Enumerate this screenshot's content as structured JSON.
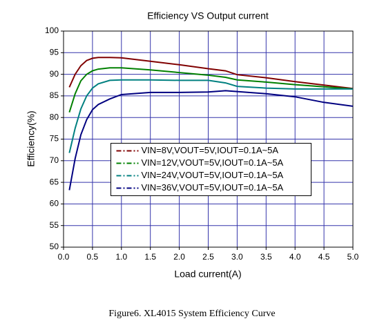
{
  "chart_data": {
    "type": "line",
    "title": "Efficiency VS Output current",
    "xlabel": "Load current(A)",
    "ylabel": "Efficiency(%)",
    "x": [
      0.1,
      0.2,
      0.3,
      0.4,
      0.5,
      0.6,
      0.8,
      1.0,
      1.5,
      2.0,
      2.5,
      2.8,
      3.0,
      3.5,
      4.0,
      4.5,
      5.0
    ],
    "series": [
      {
        "name": "VIN=8V,VOUT=5V,IOUT=0.1A~5A",
        "color": "#800000",
        "values": [
          87,
          90,
          92,
          93.2,
          93.7,
          93.9,
          93.9,
          93.8,
          93.0,
          92.2,
          91.3,
          90.8,
          89.9,
          89.2,
          88.3,
          87.5,
          86.7
        ]
      },
      {
        "name": "VIN=12V,VOUT=5V,IOUT=0.1A~5A",
        "color": "#008000",
        "values": [
          81.2,
          85.5,
          88.5,
          90.0,
          90.8,
          91.2,
          91.5,
          91.5,
          91.0,
          90.4,
          89.8,
          89.3,
          88.7,
          88.2,
          87.6,
          87.1,
          86.6
        ]
      },
      {
        "name": "VIN=24V,VOUT=5V,IOUT=0.1A~5A",
        "color": "#008080",
        "values": [
          71.8,
          77.5,
          82.0,
          85.0,
          86.8,
          87.8,
          88.6,
          88.7,
          88.7,
          88.6,
          88.6,
          88.0,
          87.2,
          86.8,
          86.6,
          86.6,
          86.6
        ]
      },
      {
        "name": "VIN=36V,VOUT=5V,IOUT=0.1A~5A",
        "color": "#000080",
        "values": [
          63.2,
          70.5,
          76.0,
          79.5,
          81.8,
          83.0,
          84.3,
          85.3,
          85.8,
          85.8,
          85.9,
          86.2,
          86.0,
          85.5,
          84.8,
          83.5,
          82.6
        ]
      }
    ],
    "xlim": [
      0,
      5
    ],
    "ylim": [
      50,
      100
    ],
    "xticks": [
      {
        "value": 0,
        "label": "0.0"
      },
      0.5,
      {
        "value": 1,
        "label": "1.0"
      },
      1.5,
      {
        "value": 2,
        "label": "2.0"
      },
      2.5,
      {
        "value": 3,
        "label": "3.0"
      },
      3.5,
      {
        "value": 4,
        "label": "4.0"
      },
      4.5,
      {
        "value": 5,
        "label": "5.0"
      }
    ],
    "yticks": [
      50,
      55,
      60,
      65,
      70,
      75,
      80,
      85,
      90,
      95,
      100
    ],
    "grid": true,
    "grid_color": "#3333aa",
    "legend": "center"
  },
  "caption": "Figure6. XL4015 System Efficiency Curve"
}
